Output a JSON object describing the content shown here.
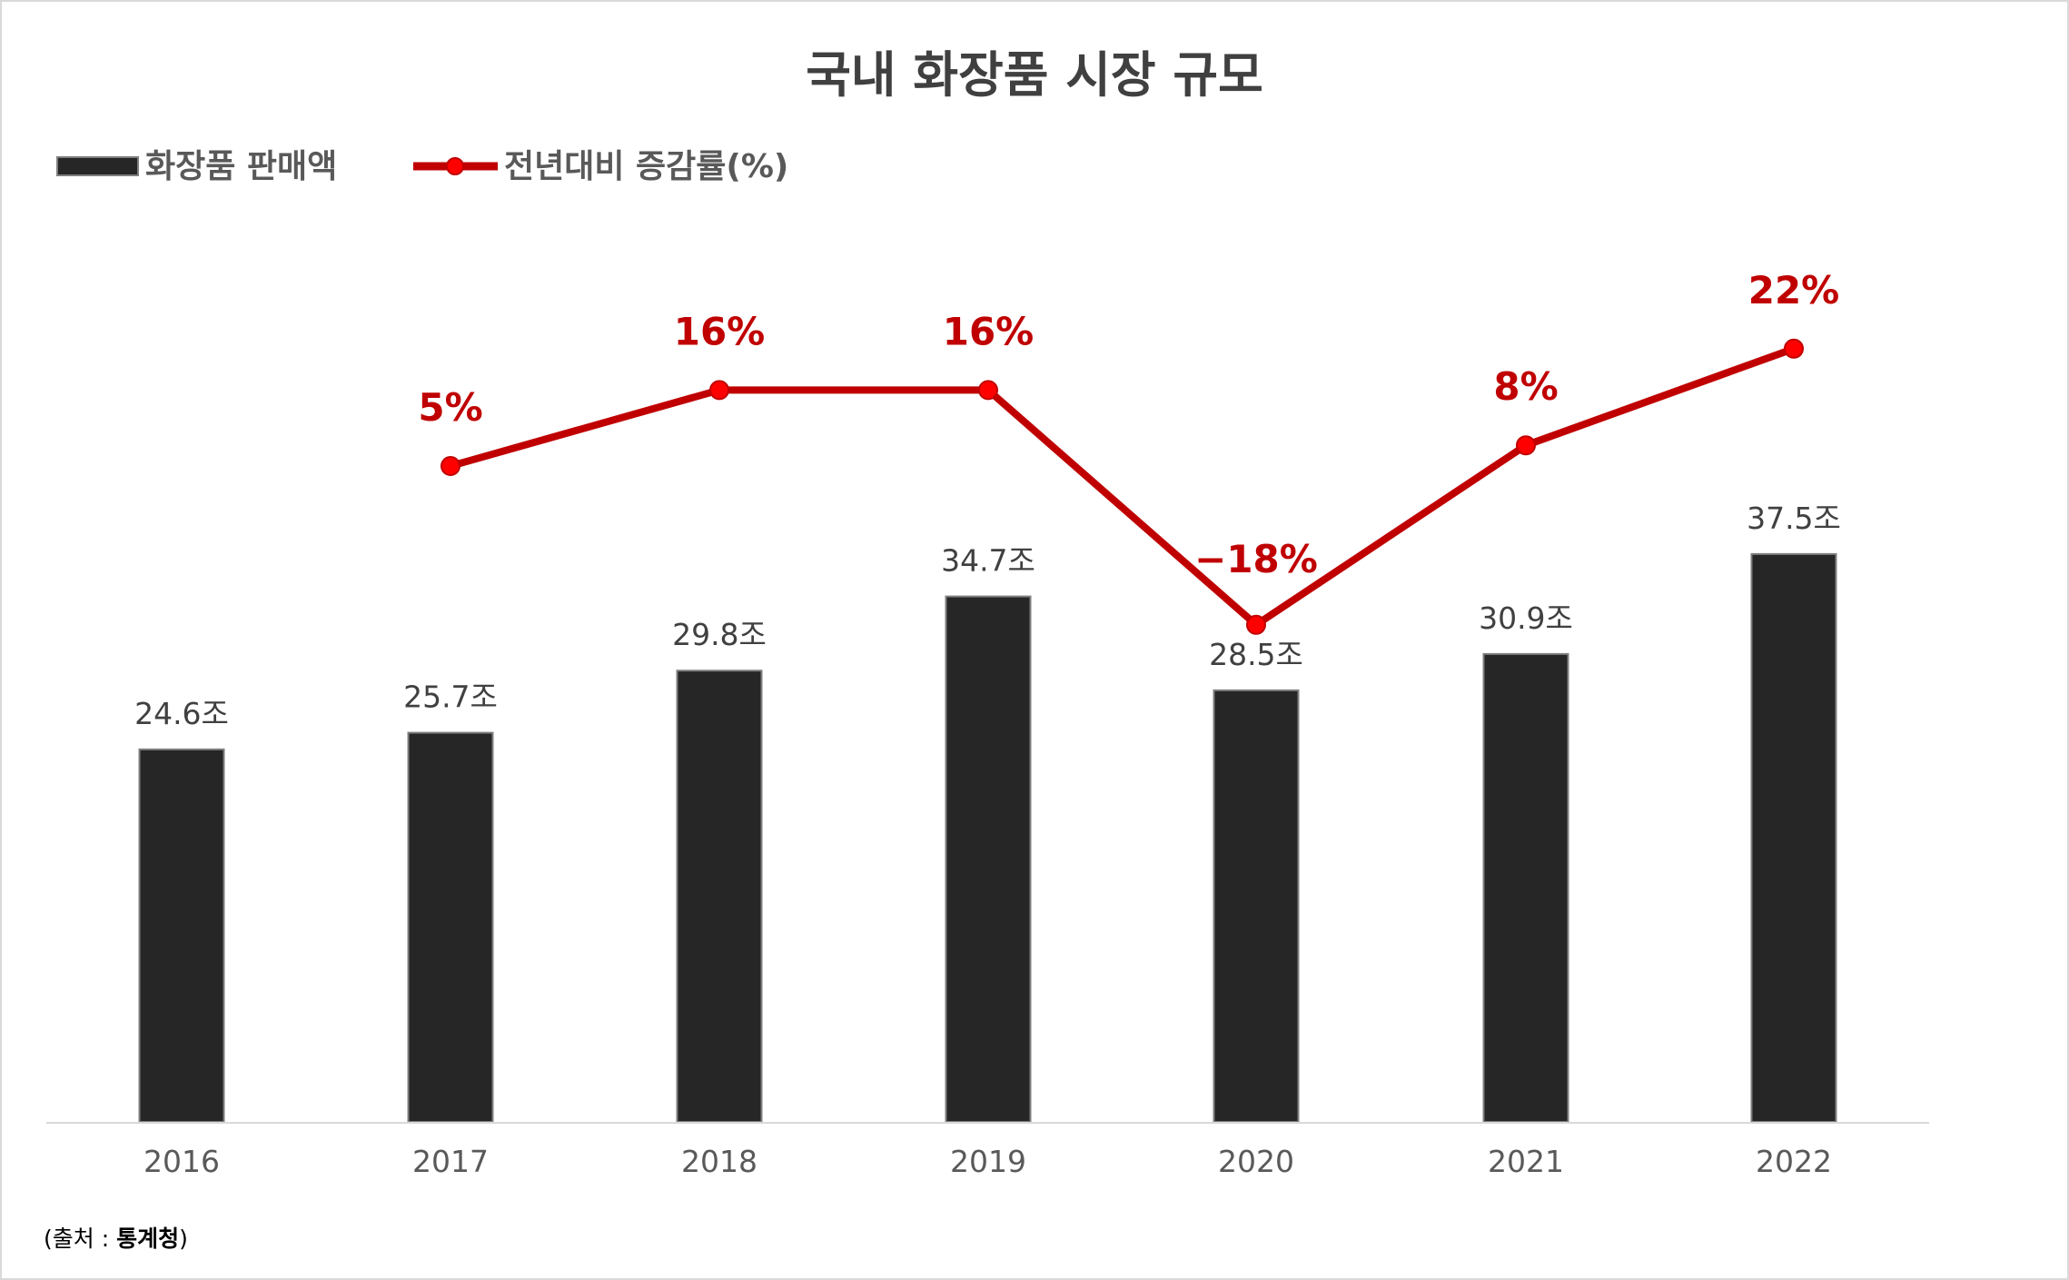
{
  "chart_data": {
    "type": "bar+line",
    "title": "국내 화장품 시장 규모",
    "categories": [
      "2016",
      "2017",
      "2018",
      "2019",
      "2020",
      "2021",
      "2022"
    ],
    "series": [
      {
        "name": "화장품 판매액",
        "type": "bar",
        "values": [
          24.6,
          25.7,
          29.8,
          34.7,
          28.5,
          30.9,
          37.5
        ],
        "labels": [
          "24.6조",
          "25.7조",
          "29.8조",
          "34.7조",
          "28.5조",
          "30.9조",
          "37.5조"
        ],
        "color": "#262626"
      },
      {
        "name": "전년대비 증감률(%)",
        "type": "line",
        "values": [
          null,
          5,
          16,
          16,
          -18,
          8,
          22
        ],
        "labels": [
          "",
          "5%",
          "16%",
          "16%",
          "−18%",
          "8%",
          "22%"
        ],
        "color": "#c00000"
      }
    ],
    "legend": "top-left",
    "grid": false
  },
  "source": {
    "prefix": "(출처 : ",
    "name": "통계청",
    "suffix": ")"
  }
}
